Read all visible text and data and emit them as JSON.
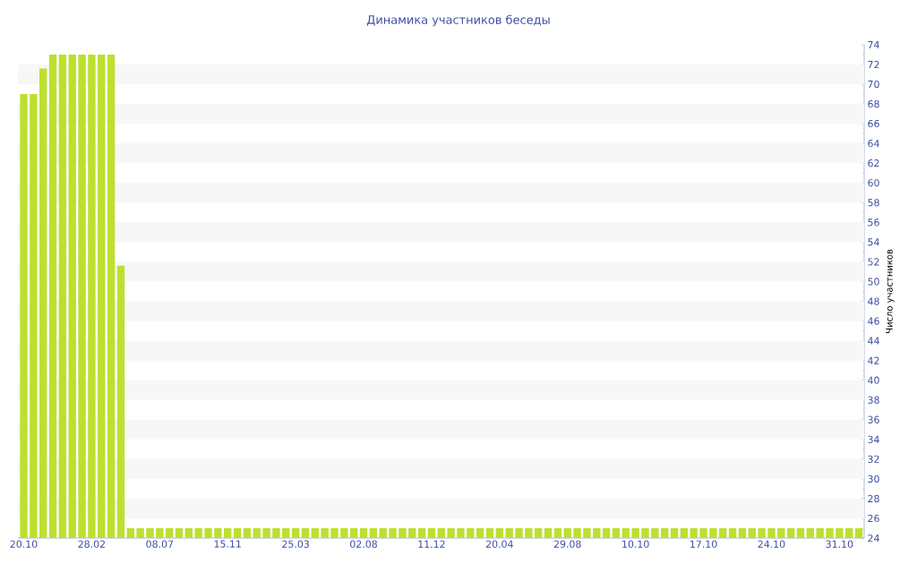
{
  "chart_data": {
    "type": "bar",
    "title": "Динамика участников беседы",
    "ylabel": "Число участников",
    "categories": [
      "20.10",
      null,
      null,
      null,
      null,
      null,
      null,
      "28.02",
      null,
      null,
      null,
      null,
      null,
      null,
      "08.07",
      null,
      null,
      null,
      null,
      null,
      null,
      "15.11",
      null,
      null,
      null,
      null,
      null,
      null,
      "25.03",
      null,
      null,
      null,
      null,
      null,
      null,
      "02.08",
      null,
      null,
      null,
      null,
      null,
      null,
      "11.12",
      null,
      null,
      null,
      null,
      null,
      null,
      "20.04",
      null,
      null,
      null,
      null,
      null,
      null,
      "29.08",
      null,
      null,
      null,
      null,
      null,
      null,
      "10.10",
      null,
      null,
      null,
      null,
      null,
      null,
      "17.10",
      null,
      null,
      null,
      null,
      null,
      null,
      "24.10",
      null,
      null,
      null,
      null,
      null,
      null,
      "31.10",
      null,
      null
    ],
    "values": [
      69,
      69,
      71.6,
      73,
      73,
      73,
      73,
      73,
      73,
      73,
      51.6,
      25,
      25,
      25,
      25,
      25,
      25,
      25,
      25,
      25,
      25,
      25,
      25,
      25,
      25,
      25,
      25,
      25,
      25,
      25,
      25,
      25,
      25,
      25,
      25,
      25,
      25,
      25,
      25,
      25,
      25,
      25,
      25,
      25,
      25,
      25,
      25,
      25,
      25,
      25,
      25,
      25,
      25,
      25,
      25,
      25,
      25,
      25,
      25,
      25,
      25,
      25,
      25,
      25,
      25,
      25,
      25,
      25,
      25,
      25,
      25,
      25,
      25,
      25,
      25,
      25,
      25,
      25,
      25,
      25,
      25,
      25,
      25,
      25,
      25,
      25,
      25
    ],
    "color": "#bde02f",
    "ylim": [
      24,
      74
    ],
    "yticks": [
      24,
      26,
      28,
      30,
      32,
      34,
      36,
      38,
      40,
      42,
      44,
      46,
      48,
      50,
      52,
      54,
      56,
      58,
      60,
      62,
      64,
      66,
      68,
      70,
      72,
      74
    ]
  }
}
